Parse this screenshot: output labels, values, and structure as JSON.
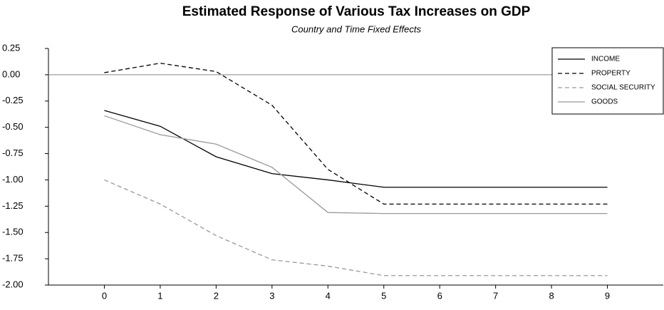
{
  "chart_data": {
    "type": "line",
    "title": "Estimated Response of Various Tax Increases on GDP",
    "subtitle": "Country and Time Fixed Effects",
    "x": [
      0,
      1,
      2,
      3,
      4,
      5,
      6,
      7,
      8,
      9
    ],
    "series": [
      {
        "name": "INCOME",
        "color": "#000000",
        "dash": "solid",
        "values": [
          -0.34,
          -0.49,
          -0.78,
          -0.94,
          -1.0,
          -1.07,
          -1.07,
          -1.07,
          -1.07,
          -1.07
        ]
      },
      {
        "name": "PROPERTY",
        "color": "#000000",
        "dash": "dashed",
        "values": [
          0.02,
          0.11,
          0.03,
          -0.29,
          -0.9,
          -1.23,
          -1.23,
          -1.23,
          -1.23,
          -1.23
        ]
      },
      {
        "name": "SOCIAL SECURITY",
        "color": "#999999",
        "dash": "dashed",
        "values": [
          -1.0,
          -1.23,
          -1.53,
          -1.76,
          -1.82,
          -1.91,
          -1.91,
          -1.91,
          -1.91,
          -1.91
        ]
      },
      {
        "name": "GOODS",
        "color": "#999999",
        "dash": "solid",
        "values": [
          -0.39,
          -0.57,
          -0.66,
          -0.88,
          -1.31,
          -1.32,
          -1.32,
          -1.32,
          -1.32,
          -1.32
        ]
      }
    ],
    "xlim": [
      -1,
      10
    ],
    "xticks": [
      0,
      1,
      2,
      3,
      4,
      5,
      6,
      7,
      8,
      9
    ],
    "ylim": [
      -2.0,
      0.25
    ],
    "yticks": [
      0.25,
      {
        "value": 0,
        "label": "0.00"
      },
      -0.25,
      {
        "value": -0.5,
        "label": "-0.50"
      },
      -0.75,
      {
        "value": -1.0,
        "label": "-1.00"
      },
      -1.25,
      {
        "value": -1.5,
        "label": "-1.50"
      },
      -1.75,
      {
        "value": -2.0,
        "label": "-2.00"
      }
    ],
    "legend": "upper right"
  }
}
